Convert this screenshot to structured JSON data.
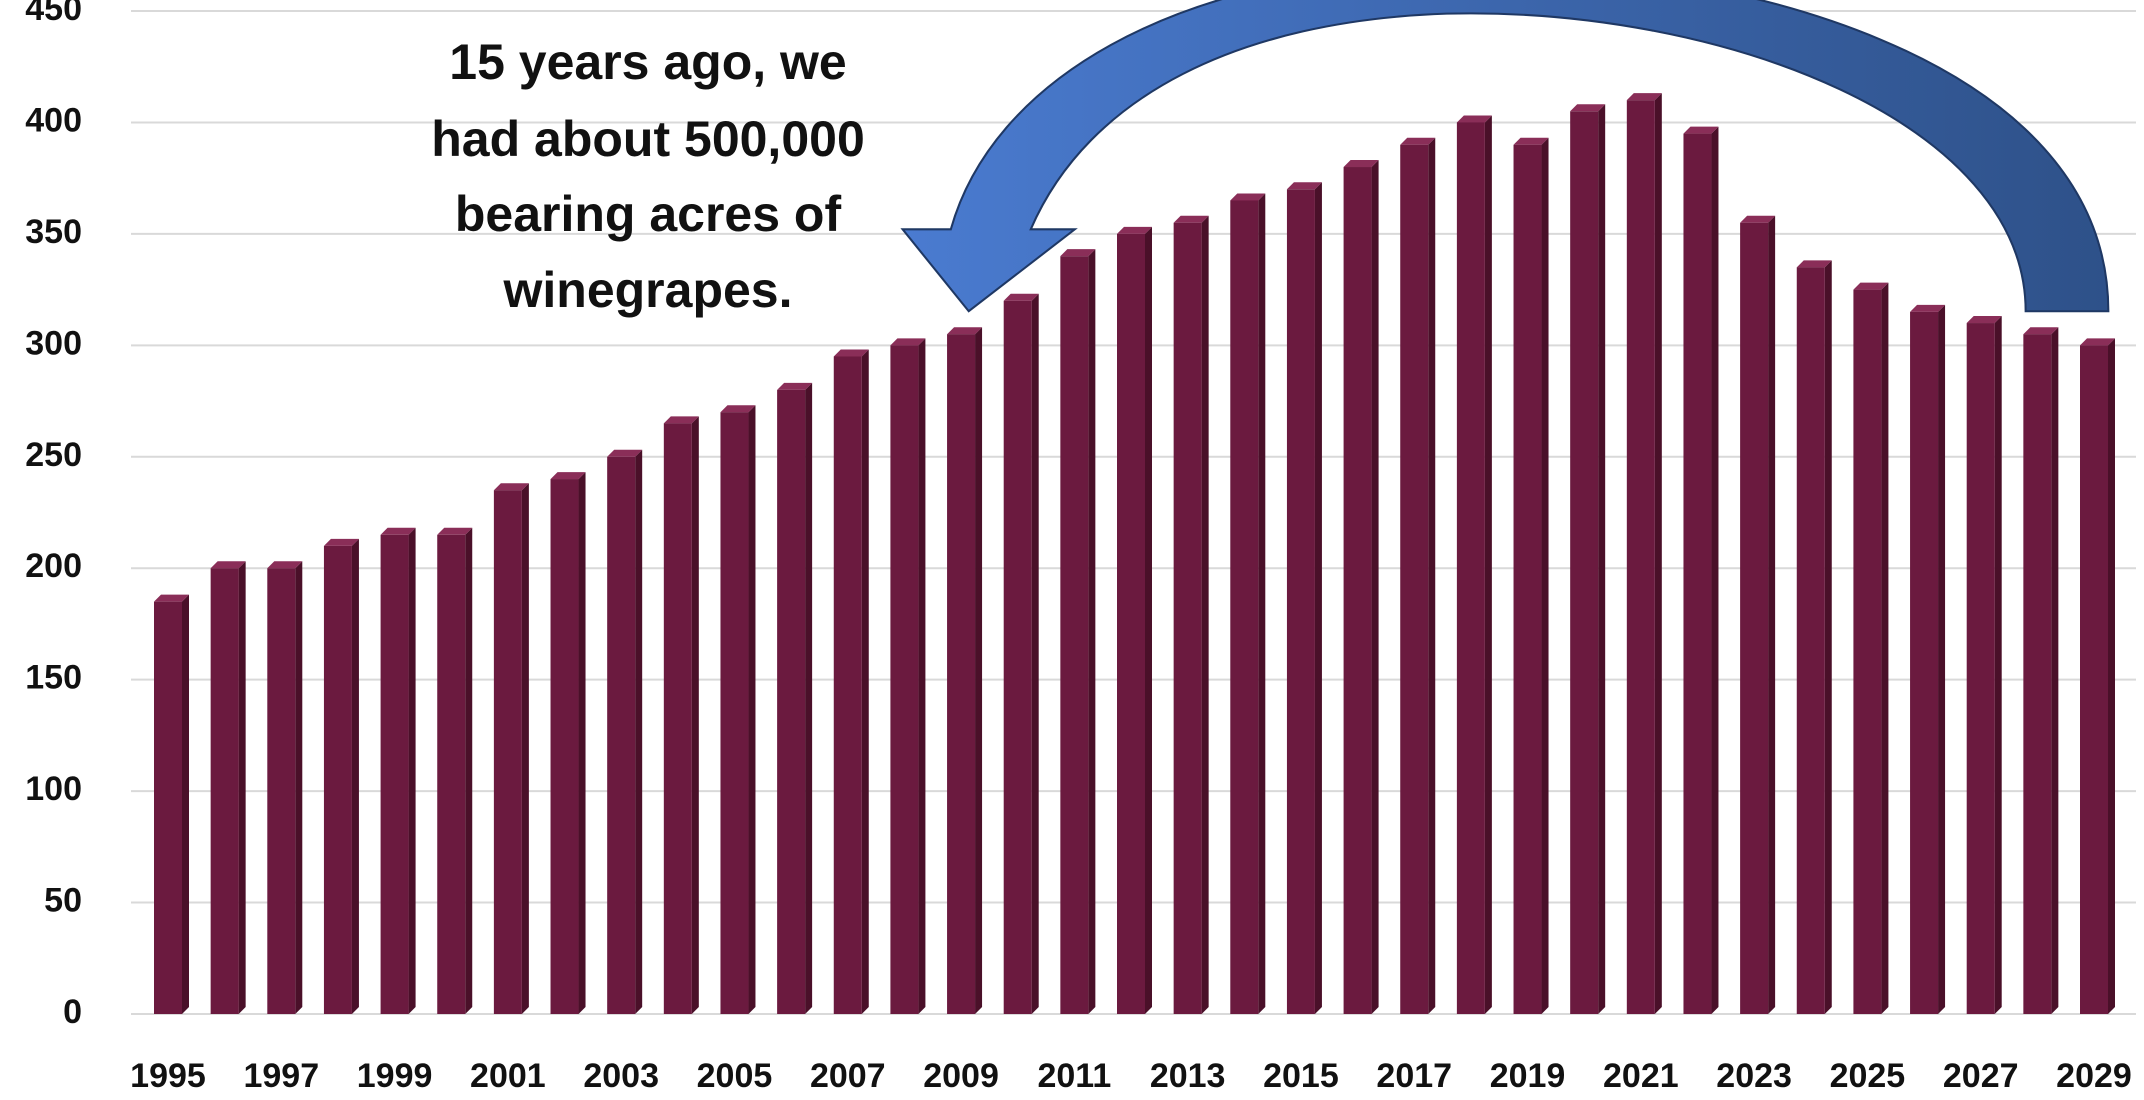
{
  "chart_data": {
    "type": "bar",
    "categories": [
      "1995",
      null,
      "1997",
      null,
      "1999",
      null,
      "2001",
      null,
      "2003",
      null,
      "2005",
      null,
      "2007",
      null,
      "2009",
      null,
      "2011",
      null,
      "2013",
      null,
      "2015",
      null,
      "2017",
      null,
      "2019",
      null,
      "2021",
      null,
      "2023",
      null,
      "2025",
      null,
      "2027",
      null,
      "2029"
    ],
    "values": [
      185,
      200,
      200,
      210,
      215,
      215,
      235,
      240,
      250,
      265,
      270,
      280,
      295,
      300,
      305,
      320,
      340,
      350,
      355,
      365,
      370,
      380,
      390,
      400,
      390,
      405,
      410,
      395,
      355,
      335,
      325,
      315,
      310,
      305,
      300
    ],
    "color": "#6b1a3f",
    "ylim": [
      0,
      450
    ],
    "yticks": [
      0,
      50,
      100,
      150,
      200,
      250,
      300,
      350,
      400,
      450
    ],
    "grid": true,
    "annotation": [
      "15 years ago, we",
      "had about 500,000",
      "bearing acres of",
      "winegrapes."
    ]
  }
}
